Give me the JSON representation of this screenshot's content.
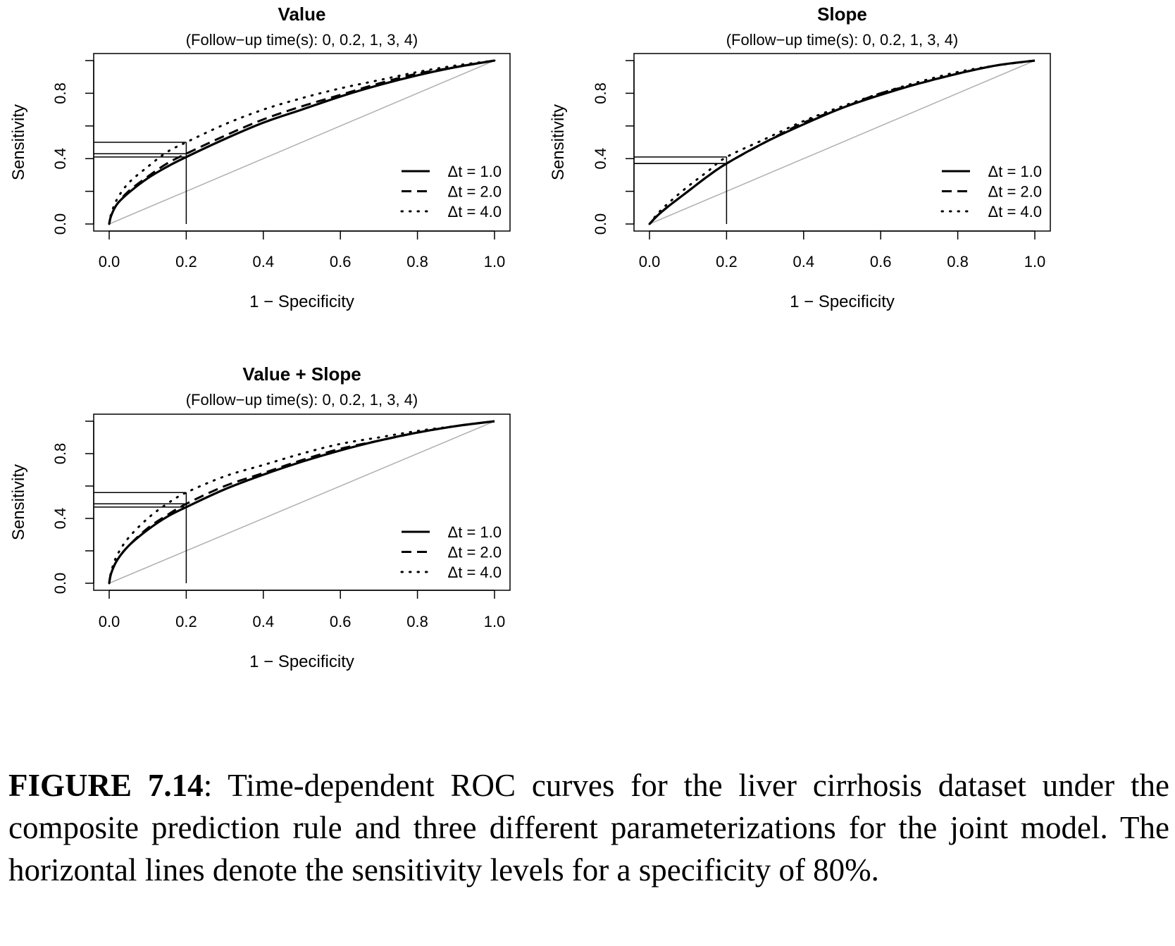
{
  "chart_data": [
    {
      "type": "line",
      "title": "Value",
      "subtitle": "(Follow−up time(s): 0, 0.2, 1, 3, 4)",
      "xlabel": "1 − Specificity",
      "ylabel": "Sensitivity",
      "xlim": [
        0,
        1
      ],
      "ylim": [
        0,
        1
      ],
      "xticks": [
        "0.0",
        "0.2",
        "0.4",
        "0.6",
        "0.8",
        "1.0"
      ],
      "yticks": [
        "0.0",
        "0.4",
        "0.8"
      ],
      "legend_position": "bottom-right",
      "reference_line": "diagonal",
      "specificity_cutoff_x": 0.2,
      "series": [
        {
          "name": "Δt = 1.0",
          "style": "solid",
          "x": [
            0,
            0.005,
            0.02,
            0.05,
            0.1,
            0.15,
            0.2,
            0.3,
            0.4,
            0.5,
            0.6,
            0.7,
            0.8,
            0.9,
            1.0
          ],
          "y": [
            0,
            0.05,
            0.12,
            0.19,
            0.28,
            0.35,
            0.41,
            0.52,
            0.62,
            0.7,
            0.78,
            0.85,
            0.91,
            0.96,
            1.0
          ]
        },
        {
          "name": "Δt = 2.0",
          "style": "dashed",
          "x": [
            0,
            0.005,
            0.02,
            0.05,
            0.1,
            0.15,
            0.2,
            0.3,
            0.4,
            0.5,
            0.6,
            0.7,
            0.8,
            0.9,
            1.0
          ],
          "y": [
            0,
            0.05,
            0.12,
            0.2,
            0.29,
            0.37,
            0.43,
            0.54,
            0.64,
            0.72,
            0.79,
            0.86,
            0.92,
            0.96,
            1.0
          ]
        },
        {
          "name": "Δt = 4.0",
          "style": "dotted",
          "x": [
            0,
            0.005,
            0.02,
            0.05,
            0.1,
            0.15,
            0.2,
            0.3,
            0.4,
            0.5,
            0.6,
            0.7,
            0.8,
            0.9,
            1.0
          ],
          "y": [
            0,
            0.06,
            0.15,
            0.25,
            0.35,
            0.44,
            0.5,
            0.61,
            0.7,
            0.77,
            0.83,
            0.88,
            0.93,
            0.97,
            1.0
          ]
        }
      ]
    },
    {
      "type": "line",
      "title": "Slope",
      "subtitle": "(Follow−up time(s): 0, 0.2, 1, 3, 4)",
      "xlabel": "1 − Specificity",
      "ylabel": "Sensitivity",
      "xlim": [
        0,
        1
      ],
      "ylim": [
        0,
        1
      ],
      "xticks": [
        "0.0",
        "0.2",
        "0.4",
        "0.6",
        "0.8",
        "1.0"
      ],
      "yticks": [
        "0.0",
        "0.4",
        "0.8"
      ],
      "legend_position": "bottom-right",
      "reference_line": "diagonal",
      "specificity_cutoff_x": 0.2,
      "series": [
        {
          "name": "Δt = 1.0",
          "style": "solid",
          "x": [
            0,
            0.02,
            0.05,
            0.1,
            0.15,
            0.2,
            0.3,
            0.4,
            0.5,
            0.6,
            0.7,
            0.8,
            0.9,
            1.0
          ],
          "y": [
            0,
            0.05,
            0.11,
            0.2,
            0.29,
            0.37,
            0.5,
            0.61,
            0.71,
            0.79,
            0.86,
            0.92,
            0.97,
            1.0
          ]
        },
        {
          "name": "Δt = 2.0",
          "style": "dashed",
          "x": [
            0,
            0.02,
            0.05,
            0.1,
            0.15,
            0.2,
            0.3,
            0.4,
            0.5,
            0.6,
            0.7,
            0.8,
            0.9,
            1.0
          ],
          "y": [
            0,
            0.05,
            0.11,
            0.2,
            0.29,
            0.37,
            0.5,
            0.62,
            0.71,
            0.8,
            0.86,
            0.92,
            0.97,
            1.0
          ]
        },
        {
          "name": "Δt = 4.0",
          "style": "dotted",
          "x": [
            0,
            0.02,
            0.05,
            0.1,
            0.15,
            0.2,
            0.3,
            0.4,
            0.5,
            0.6,
            0.7,
            0.8,
            0.9,
            1.0
          ],
          "y": [
            0,
            0.06,
            0.13,
            0.23,
            0.32,
            0.41,
            0.52,
            0.63,
            0.72,
            0.8,
            0.87,
            0.93,
            0.97,
            1.0
          ]
        }
      ]
    },
    {
      "type": "line",
      "title": "Value + Slope",
      "subtitle": "(Follow−up time(s): 0, 0.2, 1, 3, 4)",
      "xlabel": "1 − Specificity",
      "ylabel": "Sensitivity",
      "xlim": [
        0,
        1
      ],
      "ylim": [
        0,
        1
      ],
      "xticks": [
        "0.0",
        "0.2",
        "0.4",
        "0.6",
        "0.8",
        "1.0"
      ],
      "yticks": [
        "0.0",
        "0.4",
        "0.8"
      ],
      "legend_position": "bottom-right",
      "reference_line": "diagonal",
      "specificity_cutoff_x": 0.2,
      "series": [
        {
          "name": "Δt = 1.0",
          "style": "solid",
          "x": [
            0,
            0.005,
            0.02,
            0.05,
            0.1,
            0.15,
            0.2,
            0.3,
            0.4,
            0.5,
            0.6,
            0.7,
            0.8,
            0.9,
            1.0
          ],
          "y": [
            0,
            0.06,
            0.14,
            0.23,
            0.33,
            0.41,
            0.47,
            0.58,
            0.67,
            0.75,
            0.82,
            0.88,
            0.93,
            0.97,
            1.0
          ]
        },
        {
          "name": "Δt = 2.0",
          "style": "dashed",
          "x": [
            0,
            0.005,
            0.02,
            0.05,
            0.1,
            0.15,
            0.2,
            0.3,
            0.4,
            0.5,
            0.6,
            0.7,
            0.8,
            0.9,
            1.0
          ],
          "y": [
            0,
            0.06,
            0.14,
            0.23,
            0.34,
            0.42,
            0.49,
            0.6,
            0.68,
            0.76,
            0.83,
            0.88,
            0.93,
            0.97,
            1.0
          ]
        },
        {
          "name": "Δt = 4.0",
          "style": "dotted",
          "x": [
            0,
            0.005,
            0.02,
            0.05,
            0.1,
            0.15,
            0.2,
            0.3,
            0.4,
            0.5,
            0.6,
            0.7,
            0.8,
            0.9,
            1.0
          ],
          "y": [
            0,
            0.07,
            0.17,
            0.28,
            0.4,
            0.49,
            0.56,
            0.66,
            0.73,
            0.8,
            0.86,
            0.9,
            0.94,
            0.97,
            1.0
          ]
        }
      ]
    }
  ],
  "caption": {
    "label": "FIGURE 7.14",
    "text": ": Time-dependent ROC curves for the liver cirrhosis dataset under the composite prediction rule and three different parameterizations for the joint model. The horizontal lines denote the sensitivity levels for a specificity of 80%."
  }
}
